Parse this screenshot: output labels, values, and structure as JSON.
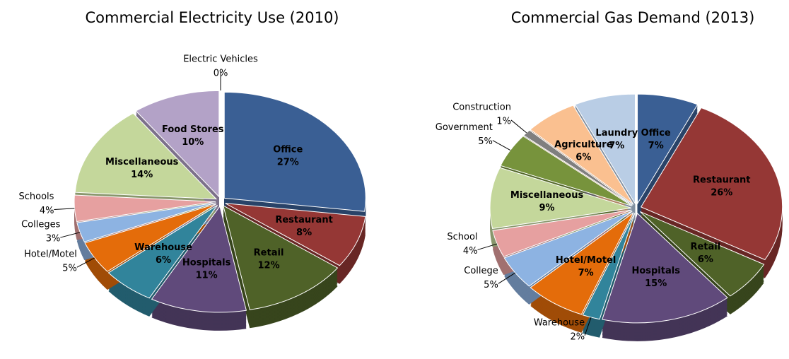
{
  "chart_data": [
    {
      "type": "pie",
      "title": "Commercial Electricity Use (2010)",
      "categories": [
        "Office",
        "Restaurant",
        "Retail",
        "Hospitals",
        "Warehouse",
        "Hotel/Motel",
        "Colleges",
        "Schools",
        "Miscellaneous",
        "Food Stores",
        "Electric Vehicles"
      ],
      "values": [
        27,
        8,
        12,
        11,
        6,
        5,
        3,
        4,
        14,
        10,
        0
      ],
      "value_labels": [
        "27%",
        "8%",
        "12%",
        "11%",
        "6%",
        "5%",
        "3%",
        "4%",
        "14%",
        "10%",
        "0%"
      ],
      "colors": [
        "#3a5f94",
        "#953735",
        "#4f6228",
        "#604a7b",
        "#31849b",
        "#e46c0a",
        "#8db3e2",
        "#e6a0a0",
        "#c4d79b",
        "#b3a2c7",
        "#d9d9d9"
      ]
    },
    {
      "type": "pie",
      "title": "Commercial Gas Demand (2013)",
      "categories": [
        "Office",
        "Restaurant",
        "Retail",
        "Hospitals",
        "Warehouse",
        "Hotel/Motel",
        "College",
        "School",
        "Miscellaneous",
        "Government",
        "Construction",
        "Agriculture",
        "Laundry"
      ],
      "values": [
        7,
        26,
        6,
        15,
        2,
        7,
        5,
        4,
        9,
        5,
        1,
        6,
        7
      ],
      "value_labels": [
        "7%",
        "26%",
        "6%",
        "15%",
        "2%",
        "7%",
        "5%",
        "4%",
        "9%",
        "5%",
        "1%",
        "6%",
        "7%"
      ],
      "colors": [
        "#3a5f94",
        "#953735",
        "#4f6228",
        "#604a7b",
        "#31849b",
        "#e46c0a",
        "#8db3e2",
        "#e6a0a0",
        "#c4d79b",
        "#77933c",
        "#7f7f7f",
        "#fac090",
        "#b9cde5"
      ]
    }
  ]
}
